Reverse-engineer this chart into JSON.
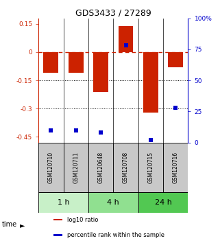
{
  "title": "GDS3433 / 27289",
  "samples": [
    "GSM120710",
    "GSM120711",
    "GSM120648",
    "GSM120708",
    "GSM120715",
    "GSM120716"
  ],
  "log10_ratio": [
    -0.11,
    -0.11,
    -0.21,
    0.14,
    -0.32,
    -0.08
  ],
  "percentile_rank": [
    10,
    10,
    8,
    78,
    2,
    28
  ],
  "time_groups": [
    {
      "label": "1 h",
      "samples": [
        0,
        1
      ],
      "color": "#c8f0c8"
    },
    {
      "label": "4 h",
      "samples": [
        2,
        3
      ],
      "color": "#90e090"
    },
    {
      "label": "24 h",
      "samples": [
        4,
        5
      ],
      "color": "#52c852"
    }
  ],
  "bar_color": "#cc2200",
  "dot_color": "#0000cc",
  "ylim_left": [
    -0.48,
    0.18
  ],
  "ylim_right": [
    0,
    100
  ],
  "yticks_left": [
    0.15,
    0.0,
    -0.15,
    -0.3,
    -0.45
  ],
  "ytick_labels_left": [
    "0.15",
    "0",
    "-0.15",
    "-0.3",
    "-0.45"
  ],
  "yticks_right": [
    100,
    75,
    50,
    25,
    0
  ],
  "ytick_labels_right": [
    "100%",
    "75",
    "50",
    "25",
    "0"
  ],
  "hline_zero_color": "#cc2200",
  "hline_dotted_color": "#000000",
  "sample_box_color": "#c8c8c8",
  "bar_width": 0.6,
  "legend_labels": [
    "log10 ratio",
    "percentile rank within the sample"
  ],
  "legend_colors": [
    "#cc2200",
    "#0000cc"
  ]
}
